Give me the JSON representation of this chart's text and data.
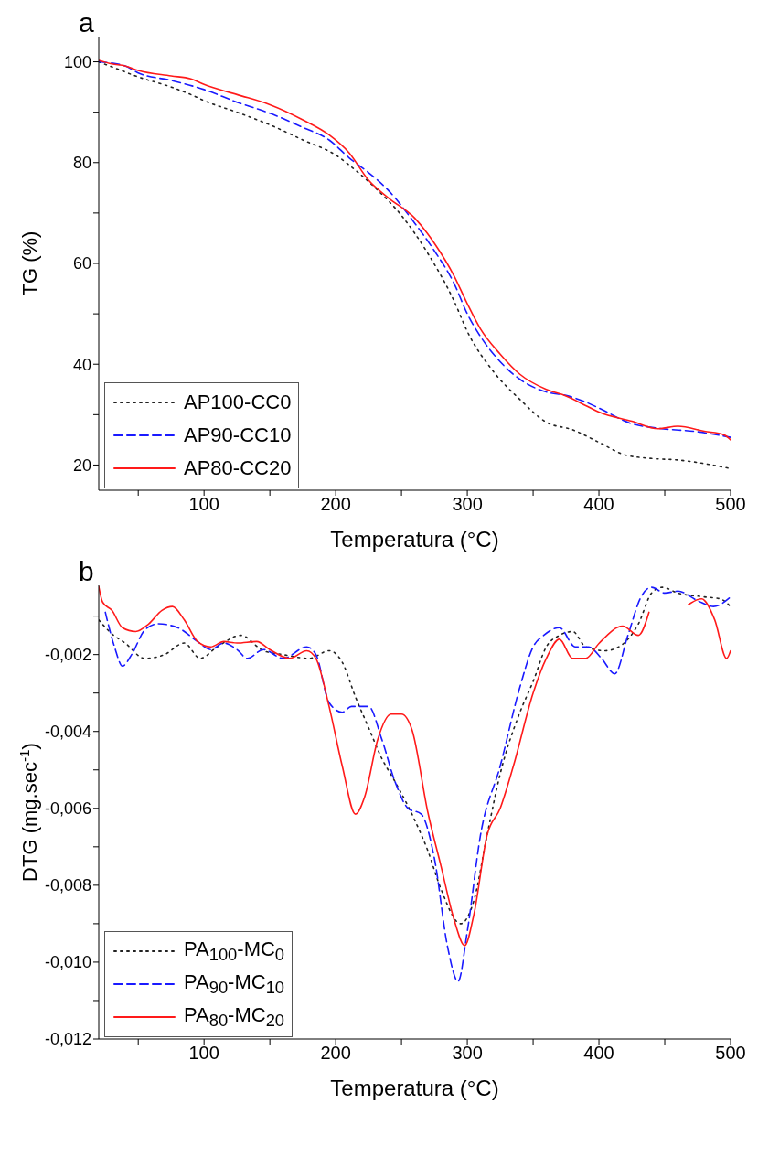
{
  "chart_data": [
    {
      "type": "line",
      "title": "a",
      "xlabel": "Temperatura (°C)",
      "ylabel": "TG (%)",
      "xlim": [
        20,
        500
      ],
      "ylim": [
        15,
        105
      ],
      "xticks": [
        {
          "value": 50,
          "label": null
        },
        100,
        {
          "value": 150,
          "label": null
        },
        200,
        {
          "value": 250,
          "label": null
        },
        300,
        {
          "value": 350,
          "label": null
        },
        400,
        {
          "value": 450,
          "label": null
        },
        500
      ],
      "yticks": [
        20,
        {
          "value": 30,
          "label": null
        },
        40,
        {
          "value": 50,
          "label": null
        },
        60,
        {
          "value": 70,
          "label": null
        },
        80,
        {
          "value": 90,
          "label": null
        },
        100
      ],
      "legend": "bottom left",
      "marker": "none",
      "series": [
        {
          "name": "AP100-CC0",
          "color": "#222222",
          "line_style": "dotted",
          "x": [
            20,
            35,
            50,
            75,
            90,
            100,
            125,
            150,
            175,
            200,
            215,
            230,
            250,
            270,
            290,
            300,
            320,
            340,
            360,
            380,
            400,
            420,
            440,
            460,
            500
          ],
          "values": [
            100,
            98.5,
            97,
            95,
            93.5,
            92.3,
            90,
            87.5,
            84.5,
            81.5,
            78.5,
            75,
            69.5,
            62,
            52.5,
            46.5,
            38.5,
            33,
            28.5,
            27,
            24.5,
            22,
            21.3,
            21,
            19.3
          ]
        },
        {
          "name": "AP90-CC10",
          "color": "#1a1aff",
          "line_style": "dashed",
          "x": [
            20,
            40,
            50,
            75,
            100,
            125,
            150,
            175,
            195,
            210,
            225,
            240,
            260,
            275,
            290,
            300,
            310,
            325,
            340,
            360,
            375,
            390,
            400,
            425,
            445,
            475,
            500
          ],
          "values": [
            100,
            99.2,
            97.8,
            96.3,
            94.5,
            92,
            89.8,
            87,
            84.5,
            81,
            78,
            74.5,
            68,
            62.5,
            56,
            50,
            45.5,
            40.5,
            37,
            34.5,
            33.8,
            32.5,
            31.3,
            28.2,
            27.3,
            26.6,
            25.5
          ]
        },
        {
          "name": "AP80-CC20",
          "color": "#ff1a1a",
          "line_style": "solid",
          "x": [
            20,
            30,
            40,
            50,
            75,
            90,
            100,
            125,
            150,
            175,
            195,
            210,
            225,
            240,
            260,
            275,
            290,
            300,
            310,
            325,
            340,
            360,
            375,
            390,
            400,
            425,
            445,
            460,
            480,
            495,
            500
          ],
          "values": [
            100.3,
            99.6,
            99.2,
            98.3,
            97.2,
            96.6,
            95.5,
            93.5,
            91.5,
            88.5,
            85.5,
            82,
            76.5,
            73,
            69,
            64,
            57.5,
            52,
            47,
            42,
            38,
            35,
            33.7,
            31.8,
            30.5,
            28.7,
            27.2,
            27.7,
            26.7,
            26,
            25
          ]
        }
      ]
    },
    {
      "type": "line",
      "title": "b",
      "xlabel": "Temperatura (°C)",
      "ylabel": "DTG (mg.sec$^{-1}$)",
      "xlim": [
        20,
        500
      ],
      "ylim": [
        -0.012,
        -0.0002
      ],
      "xticks": [
        {
          "value": 50,
          "label": null
        },
        100,
        {
          "value": 150,
          "label": null
        },
        200,
        {
          "value": 250,
          "label": null
        },
        300,
        {
          "value": 350,
          "label": null
        },
        400,
        {
          "value": 450,
          "label": null
        },
        500
      ],
      "yticks": [
        {
          "value": -0.012,
          "label": "-0,012"
        },
        {
          "value": -0.011,
          "label": null
        },
        {
          "value": -0.01,
          "label": "-0,010"
        },
        {
          "value": -0.009,
          "label": null
        },
        {
          "value": -0.008,
          "label": "-0,008"
        },
        {
          "value": -0.007,
          "label": null
        },
        {
          "value": -0.006,
          "label": "-0,006"
        },
        {
          "value": -0.005,
          "label": null
        },
        {
          "value": -0.004,
          "label": "-0,004"
        },
        {
          "value": -0.003,
          "label": null
        },
        {
          "value": -0.002,
          "label": "-0,002"
        },
        {
          "value": -0.001,
          "label": null
        }
      ],
      "legend": "bottom left",
      "marker": "none",
      "series": [
        {
          "name": "PA$_{100}$-MC$_{0}$",
          "color": "#222222",
          "line_style": "dotted",
          "x": [
            20,
            30,
            40,
            55,
            70,
            85,
            97,
            110,
            128,
            145,
            160,
            180,
            195,
            205,
            215,
            225,
            235,
            245,
            260,
            270,
            280,
            295,
            305,
            315,
            325,
            340,
            350,
            360,
            370,
            380,
            390,
            405,
            415,
            430,
            440,
            448,
            460,
            480,
            492,
            500
          ],
          "values": [
            -0.0011,
            -0.00146,
            -0.0017,
            -0.0021,
            -0.002,
            -0.0017,
            -0.0021,
            -0.0018,
            -0.0015,
            -0.0019,
            -0.002,
            -0.0021,
            -0.0019,
            -0.0022,
            -0.0031,
            -0.0039,
            -0.0047,
            -0.0053,
            -0.0063,
            -0.0071,
            -0.0081,
            -0.009,
            -0.0084,
            -0.0067,
            -0.0051,
            -0.0035,
            -0.0027,
            -0.0018,
            -0.0015,
            -0.0014,
            -0.0018,
            -0.0019,
            -0.0018,
            -0.0012,
            -0.0004,
            -0.00025,
            -0.0004,
            -0.0005,
            -0.00055,
            -0.00075
          ]
        },
        {
          "name": "PA$_{90}$-MC$_{10}$",
          "color": "#1a1aff",
          "line_style": "dashed",
          "x": [
            25,
            32,
            38,
            45,
            55,
            65,
            80,
            95,
            105,
            115,
            125,
            133,
            145,
            160,
            178,
            185,
            195,
            205,
            212,
            225,
            235,
            245,
            255,
            265,
            275,
            285,
            293,
            300,
            310,
            325,
            340,
            350,
            358,
            370,
            382,
            392,
            402,
            412,
            422,
            432,
            440,
            450,
            460,
            475,
            487,
            500
          ],
          "values": [
            -0.0009,
            -0.0018,
            -0.0023,
            -0.002,
            -0.00136,
            -0.0012,
            -0.0013,
            -0.00166,
            -0.00187,
            -0.0017,
            -0.00187,
            -0.0021,
            -0.00187,
            -0.0021,
            -0.0018,
            -0.002,
            -0.00325,
            -0.0035,
            -0.00335,
            -0.00335,
            -0.0042,
            -0.0053,
            -0.006,
            -0.00615,
            -0.0073,
            -0.0096,
            -0.0105,
            -0.0092,
            -0.0067,
            -0.0049,
            -0.00284,
            -0.0018,
            -0.0015,
            -0.0013,
            -0.0018,
            -0.0018,
            -0.0021,
            -0.0025,
            -0.0015,
            -0.0005,
            -0.00025,
            -0.0004,
            -0.00035,
            -0.0006,
            -0.00075,
            -0.0005
          ]
        },
        {
          "name": "PA$_{80}$-MC$_{20}$",
          "color": "#ff1a1a",
          "line_style": "solid",
          "x": [
            20,
            23,
            30,
            38,
            48,
            58,
            68,
            76,
            85,
            95,
            105,
            115,
            125,
            140,
            150,
            165,
            178,
            185,
            195,
            205,
            215,
            222,
            232,
            242,
            250,
            258,
            270,
            280,
            290,
            298,
            305,
            315,
            325,
            335,
            350,
            360,
            370,
            380,
            390,
            400,
            418,
            430,
            438,
            444,
            462,
            468,
            478,
            488,
            497,
            500
          ],
          "values": [
            -0.00023,
            -0.00064,
            -0.00085,
            -0.0013,
            -0.0014,
            -0.0012,
            -0.00085,
            -0.00075,
            -0.0011,
            -0.00166,
            -0.0018,
            -0.00166,
            -0.0017,
            -0.00166,
            -0.00187,
            -0.0021,
            -0.0019,
            -0.0021,
            -0.00335,
            -0.0049,
            -0.00615,
            -0.0057,
            -0.0042,
            -0.00355,
            -0.00355,
            -0.00396,
            -0.0061,
            -0.0075,
            -0.0089,
            -0.00957,
            -0.00876,
            -0.0067,
            -0.006,
            -0.0049,
            -0.003,
            -0.0021,
            -0.0016,
            -0.0021,
            -0.0021,
            -0.00171,
            -0.00126,
            -0.0015,
            -0.0009,
            null,
            null,
            -0.0007,
            -0.00055,
            -0.0011,
            -0.0021,
            -0.0019
          ]
        }
      ]
    }
  ]
}
